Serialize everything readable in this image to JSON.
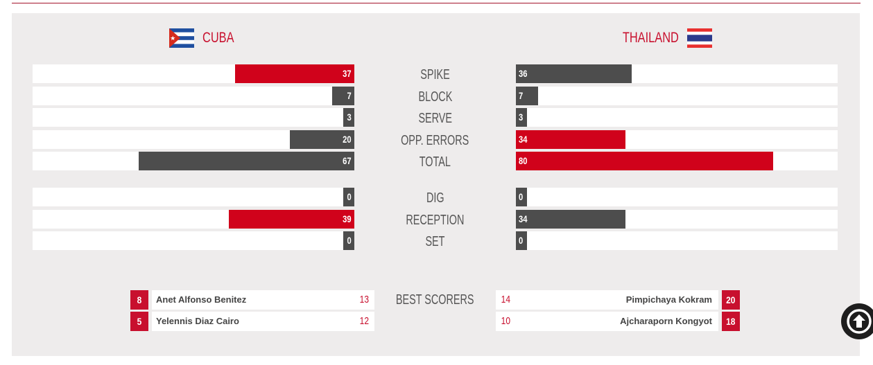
{
  "colors": {
    "accent": "#c8102e",
    "bar_red": "#d0021b",
    "bar_grey": "#4d4d4d",
    "panel": "#eeecec"
  },
  "teams": {
    "left": {
      "name": "CUBA",
      "flag": "cuba-flag"
    },
    "right": {
      "name": "THAILAND",
      "flag": "thailand-flag"
    }
  },
  "scale_max": 100,
  "stats": [
    {
      "label": "SPIKE",
      "left": "37",
      "right": "36",
      "left_color": "red",
      "right_color": "grey"
    },
    {
      "label": "BLOCK",
      "left": "7",
      "right": "7",
      "left_color": "grey",
      "right_color": "grey"
    },
    {
      "label": "SERVE",
      "left": "3",
      "right": "3",
      "left_color": "grey",
      "right_color": "grey"
    },
    {
      "label": "OPP. ERRORS",
      "left": "20",
      "right": "34",
      "left_color": "grey",
      "right_color": "red"
    },
    {
      "label": "TOTAL",
      "left": "67",
      "right": "80",
      "left_color": "grey",
      "right_color": "red"
    },
    {
      "label": "DIG",
      "left": "0",
      "right": "0",
      "left_color": "grey",
      "right_color": "grey"
    },
    {
      "label": "RECEPTION",
      "left": "39",
      "right": "34",
      "left_color": "red",
      "right_color": "grey"
    },
    {
      "label": "SET",
      "left": "0",
      "right": "0",
      "left_color": "grey",
      "right_color": "grey"
    }
  ],
  "best_scorers": {
    "title": "BEST SCORERS",
    "left": [
      {
        "number": "8",
        "name": "Anet Alfonso Benitez",
        "points": "13"
      },
      {
        "number": "5",
        "name": "Yelennis Diaz Cairo",
        "points": "12"
      }
    ],
    "right": [
      {
        "number": "20",
        "name": "Pimpichaya Kokram",
        "points": "14"
      },
      {
        "number": "18",
        "name": "Ajcharaporn Kongyot",
        "points": "10"
      }
    ]
  },
  "scroll_top": {
    "icon": "arrow-up-circle-icon"
  }
}
